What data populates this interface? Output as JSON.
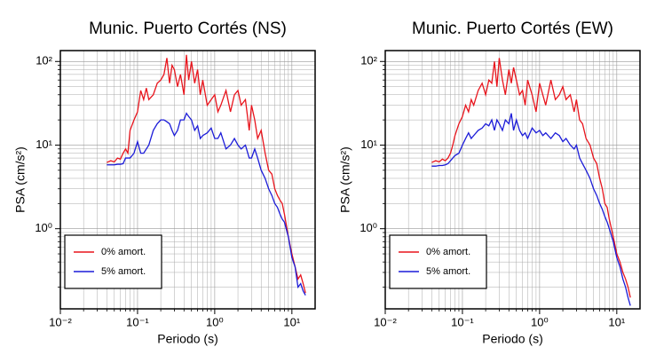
{
  "chart_data": [
    {
      "type": "line",
      "title": "Munic. Puerto Cortés (NS)",
      "xlabel": "Periodo (s)",
      "ylabel": "PSA (cm/s²)",
      "log_x": true,
      "log_y": true,
      "grid": true,
      "legend": "lower left",
      "xlim": [
        0.01,
        20
      ],
      "ylim": [
        0.11,
        135
      ],
      "xticks": [
        {
          "value": 0.01,
          "label": "10⁻²"
        },
        {
          "value": 0.1,
          "label": "10⁻¹"
        },
        {
          "value": 1,
          "label": "10⁰"
        },
        {
          "value": 10,
          "label": "10¹"
        }
      ],
      "yticks": [
        {
          "value": 1,
          "label": "10⁰"
        },
        {
          "value": 10,
          "label": "10¹"
        },
        {
          "value": 100,
          "label": "10²"
        }
      ],
      "xticks_minor": [
        0.02,
        0.03,
        0.04,
        0.05,
        0.06,
        0.07,
        0.08,
        0.09,
        0.2,
        0.3,
        0.4,
        0.5,
        0.6,
        0.7,
        0.8,
        0.9,
        2,
        3,
        4,
        5,
        6,
        7,
        8,
        9
      ],
      "yticks_minor": [
        0.2,
        0.3,
        0.4,
        0.5,
        0.6,
        0.7,
        0.8,
        0.9,
        2,
        3,
        4,
        5,
        6,
        7,
        8,
        9,
        20,
        30,
        40,
        50,
        60,
        70,
        80,
        90
      ],
      "x": [
        0.04,
        0.045,
        0.05,
        0.055,
        0.06,
        0.065,
        0.07,
        0.075,
        0.08,
        0.09,
        0.1,
        0.11,
        0.12,
        0.13,
        0.14,
        0.16,
        0.18,
        0.2,
        0.22,
        0.24,
        0.26,
        0.28,
        0.3,
        0.33,
        0.36,
        0.4,
        0.43,
        0.46,
        0.5,
        0.55,
        0.6,
        0.65,
        0.7,
        0.8,
        0.9,
        1.0,
        1.1,
        1.2,
        1.4,
        1.6,
        1.8,
        2.0,
        2.2,
        2.5,
        2.8,
        3.0,
        3.3,
        3.6,
        4.0,
        4.5,
        5.0,
        5.5,
        6.0,
        6.5,
        7.0,
        7.5,
        8.0,
        9.0,
        10,
        11,
        12,
        13,
        14,
        15
      ],
      "series": [
        {
          "name": "0% amort.",
          "color": "#e8141c",
          "values": [
            6.2,
            6.5,
            6.3,
            7,
            6.8,
            8,
            9,
            8,
            15,
            20,
            25,
            45,
            35,
            48,
            35,
            40,
            55,
            60,
            70,
            110,
            55,
            90,
            80,
            50,
            70,
            40,
            120,
            60,
            100,
            55,
            80,
            40,
            60,
            30,
            35,
            40,
            25,
            30,
            45,
            25,
            40,
            45,
            30,
            35,
            15,
            30,
            20,
            12,
            15,
            8,
            5,
            4.5,
            3,
            2.5,
            2.2,
            2.0,
            1.5,
            0.8,
            0.5,
            0.35,
            0.25,
            0.28,
            0.22,
            0.17
          ]
        },
        {
          "name": "5% amort.",
          "color": "#1b1bd8",
          "values": [
            5.8,
            5.8,
            5.8,
            5.9,
            5.9,
            6,
            7,
            7,
            7,
            8,
            11,
            8,
            8,
            9,
            10,
            15,
            18,
            20,
            20,
            19,
            18,
            15,
            13,
            15,
            20,
            20,
            24,
            22,
            20,
            15,
            17,
            12,
            13,
            14,
            16,
            12,
            12,
            14,
            9,
            10,
            12,
            10,
            9,
            10,
            7,
            7,
            9,
            7,
            5,
            4,
            3,
            2.5,
            2,
            1.8,
            1.5,
            1.3,
            1.2,
            0.8,
            0.45,
            0.35,
            0.2,
            0.22,
            0.18,
            0.16
          ]
        }
      ]
    },
    {
      "type": "line",
      "title": "Munic. Puerto Cortés (EW)",
      "xlabel": "Periodo (s)",
      "ylabel": "PSA (cm/s²)",
      "log_x": true,
      "log_y": true,
      "grid": true,
      "legend": "lower left",
      "xlim": [
        0.01,
        20
      ],
      "ylim": [
        0.11,
        135
      ],
      "xticks": [
        {
          "value": 0.01,
          "label": "10⁻²"
        },
        {
          "value": 0.1,
          "label": "10⁻¹"
        },
        {
          "value": 1,
          "label": "10⁰"
        },
        {
          "value": 10,
          "label": "10¹"
        }
      ],
      "yticks": [
        {
          "value": 1,
          "label": "10⁰"
        },
        {
          "value": 10,
          "label": "10¹"
        },
        {
          "value": 100,
          "label": "10²"
        }
      ],
      "xticks_minor": [
        0.02,
        0.03,
        0.04,
        0.05,
        0.06,
        0.07,
        0.08,
        0.09,
        0.2,
        0.3,
        0.4,
        0.5,
        0.6,
        0.7,
        0.8,
        0.9,
        2,
        3,
        4,
        5,
        6,
        7,
        8,
        9
      ],
      "yticks_minor": [
        0.2,
        0.3,
        0.4,
        0.5,
        0.6,
        0.7,
        0.8,
        0.9,
        2,
        3,
        4,
        5,
        6,
        7,
        8,
        9,
        20,
        30,
        40,
        50,
        60,
        70,
        80,
        90
      ],
      "x": [
        0.04,
        0.045,
        0.05,
        0.055,
        0.06,
        0.065,
        0.07,
        0.075,
        0.08,
        0.09,
        0.1,
        0.11,
        0.12,
        0.13,
        0.14,
        0.16,
        0.18,
        0.2,
        0.22,
        0.24,
        0.26,
        0.28,
        0.3,
        0.33,
        0.36,
        0.4,
        0.43,
        0.46,
        0.5,
        0.55,
        0.6,
        0.65,
        0.7,
        0.8,
        0.9,
        1.0,
        1.1,
        1.2,
        1.4,
        1.6,
        1.8,
        2.0,
        2.2,
        2.5,
        2.8,
        3.0,
        3.3,
        3.6,
        4.0,
        4.5,
        5.0,
        5.5,
        6.0,
        6.5,
        7.0,
        7.5,
        8.0,
        9.0,
        10,
        11,
        12,
        13,
        14,
        15
      ],
      "series": [
        {
          "name": "0% amort.",
          "color": "#e8141c",
          "values": [
            6.2,
            6.5,
            6.3,
            6.8,
            6.5,
            7,
            8,
            10,
            13,
            18,
            22,
            30,
            25,
            35,
            30,
            45,
            55,
            40,
            60,
            55,
            100,
            50,
            110,
            60,
            40,
            80,
            55,
            85,
            60,
            40,
            45,
            30,
            60,
            40,
            25,
            55,
            40,
            30,
            60,
            35,
            40,
            50,
            35,
            40,
            25,
            35,
            20,
            18,
            12,
            10,
            7,
            6,
            4,
            3,
            2,
            1.8,
            1.3,
            0.8,
            0.5,
            0.4,
            0.3,
            0.25,
            0.2,
            0.15
          ]
        },
        {
          "name": "5% amort.",
          "color": "#1b1bd8",
          "values": [
            5.6,
            5.6,
            5.7,
            5.7,
            5.8,
            6,
            6.5,
            7,
            7.5,
            8,
            10,
            12,
            14,
            12,
            13,
            15,
            16,
            18,
            17,
            20,
            15,
            20,
            18,
            15,
            20,
            18,
            24,
            15,
            20,
            15,
            13,
            14,
            12,
            16,
            14,
            15,
            13,
            14,
            12,
            14,
            13,
            11,
            12,
            10,
            9,
            10,
            7,
            6,
            5,
            4,
            3,
            2.5,
            2,
            1.7,
            1.4,
            1.2,
            1,
            0.7,
            0.45,
            0.35,
            0.25,
            0.2,
            0.15,
            0.12
          ]
        }
      ]
    }
  ]
}
